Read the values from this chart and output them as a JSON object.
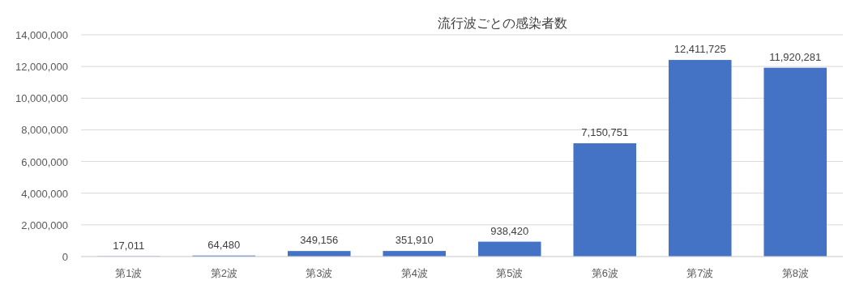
{
  "chart_data": {
    "type": "bar",
    "title": "流行波ごとの感染者数",
    "categories": [
      "第1波",
      "第2波",
      "第3波",
      "第4波",
      "第5波",
      "第6波",
      "第7波",
      "第8波"
    ],
    "values": [
      17011,
      64480,
      349156,
      351910,
      938420,
      7150751,
      12411725,
      11920281
    ],
    "value_labels": [
      "17,011",
      "64,480",
      "349,156",
      "351,910",
      "938,420",
      "7,150,751",
      "12,411,725",
      "11,920,281"
    ],
    "color": "#4472c4",
    "ylim": [
      0,
      14000000
    ],
    "yticks": [
      {
        "value": 0,
        "label": "0"
      },
      {
        "value": 2000000,
        "label": "2,000,000"
      },
      {
        "value": 4000000,
        "label": "4,000,000"
      },
      {
        "value": 6000000,
        "label": "6,000,000"
      },
      {
        "value": 8000000,
        "label": "8,000,000"
      },
      {
        "value": 10000000,
        "label": "10,000,000"
      },
      {
        "value": 12000000,
        "label": "12,000,000"
      },
      {
        "value": 14000000,
        "label": "14,000,000"
      }
    ],
    "grid": "y"
  }
}
